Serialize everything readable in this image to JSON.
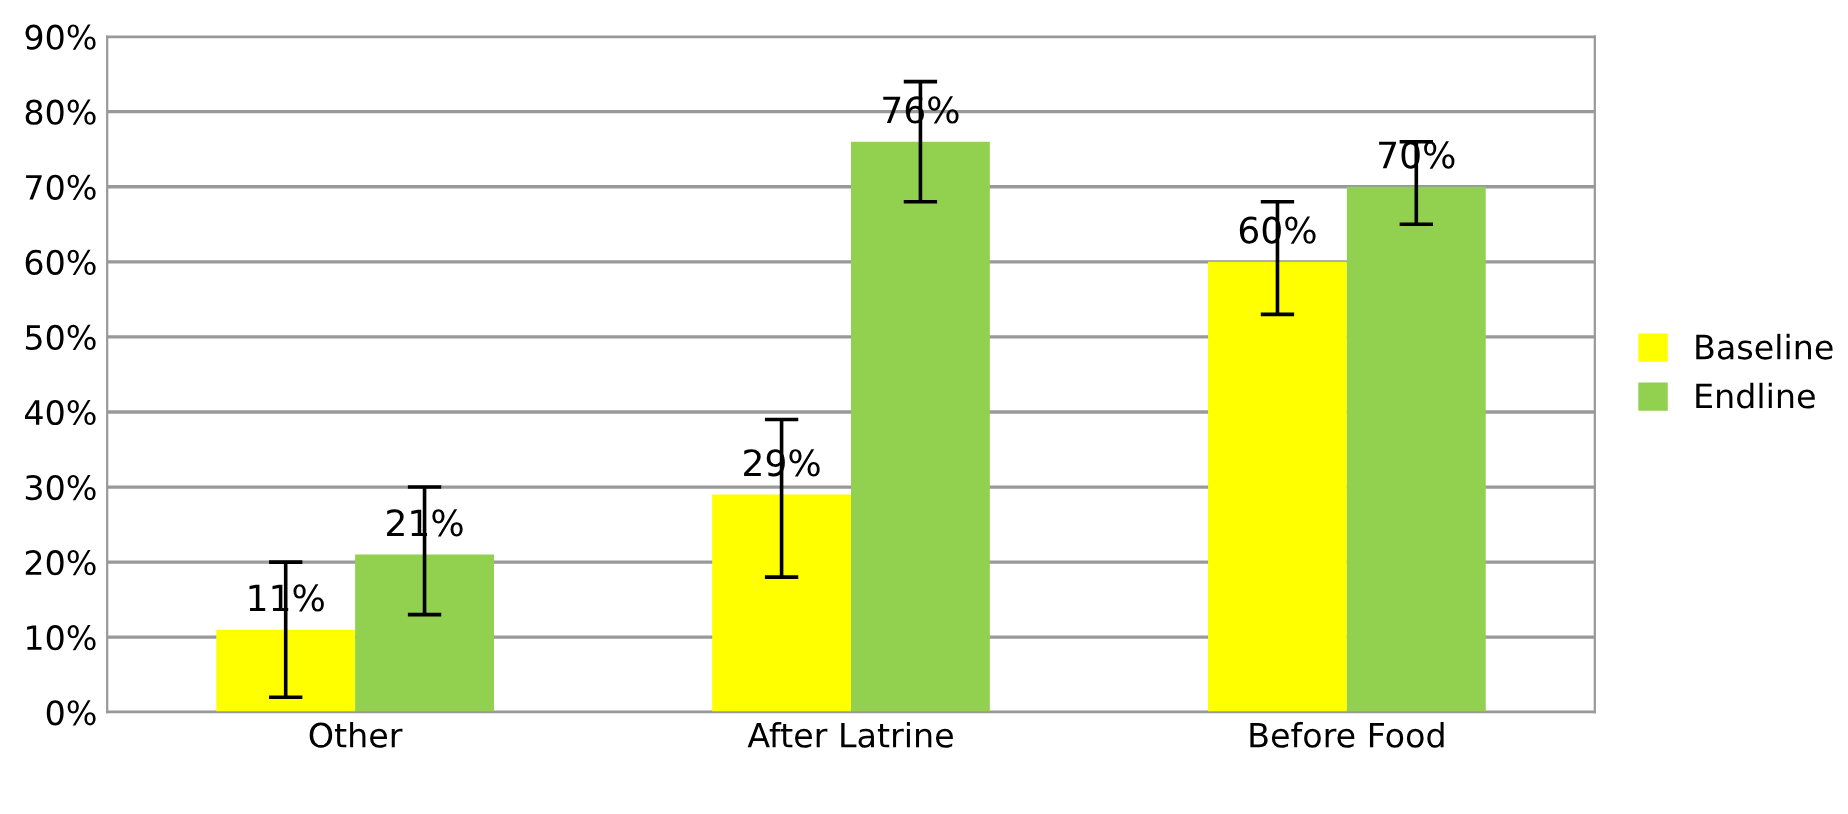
{
  "chart_data": {
    "type": "bar",
    "categories": [
      "Other",
      "After Latrine",
      "Before Food"
    ],
    "series": [
      {
        "name": "Baseline",
        "color": "#ffff00",
        "values": [
          11,
          29,
          60
        ],
        "value_labels": [
          "11%",
          "29%",
          "60%"
        ],
        "errors": [
          [
            2,
            20
          ],
          [
            18,
            39
          ],
          [
            53,
            68
          ]
        ]
      },
      {
        "name": "Endline",
        "color": "#92d050",
        "values": [
          21,
          76,
          70
        ],
        "value_labels": [
          "21%",
          "76%",
          "70%"
        ],
        "errors": [
          [
            13,
            30
          ],
          [
            68,
            84
          ],
          [
            65,
            76
          ]
        ]
      }
    ],
    "ylim": [
      0,
      90
    ],
    "yticks": [
      {
        "value": 0,
        "label": "0%"
      },
      {
        "value": 10,
        "label": "10%"
      },
      {
        "value": 20,
        "label": "20%"
      },
      {
        "value": 30,
        "label": "30%"
      },
      {
        "value": 40,
        "label": "40%"
      },
      {
        "value": 50,
        "label": "50%"
      },
      {
        "value": 60,
        "label": "60%"
      },
      {
        "value": 70,
        "label": "70%"
      },
      {
        "value": 80,
        "label": "80%"
      },
      {
        "value": 90,
        "label": "90%"
      }
    ],
    "grid": "y",
    "legend": "right"
  }
}
